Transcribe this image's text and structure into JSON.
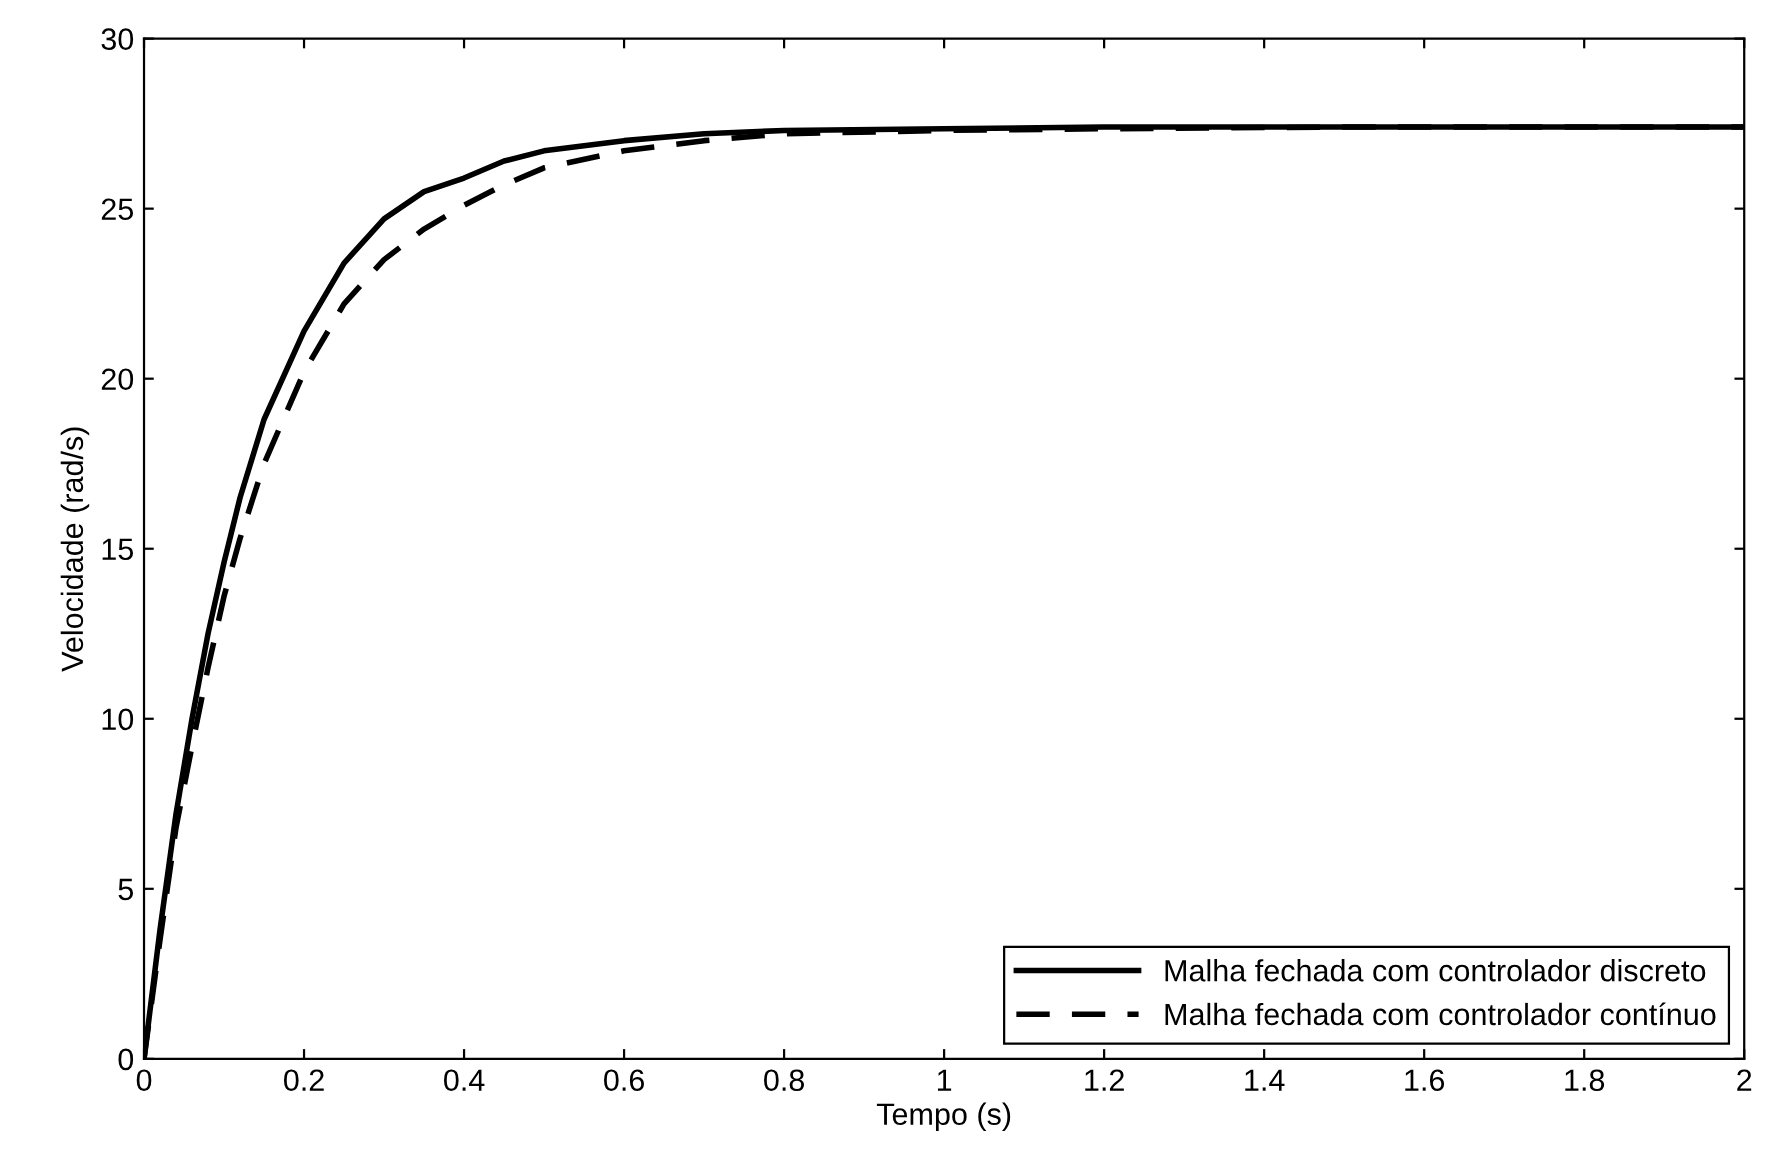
{
  "chart_data": {
    "type": "line",
    "xlabel": "Tempo (s)",
    "ylabel": "Velocidade (rad/s)",
    "xlim": [
      0,
      2
    ],
    "ylim": [
      0,
      30
    ],
    "xticks": [
      0,
      0.2,
      0.4,
      0.6,
      0.8,
      1,
      1.2,
      1.4,
      1.6,
      1.8,
      2
    ],
    "yticks": [
      0,
      5,
      10,
      15,
      20,
      25,
      30
    ],
    "grid": false,
    "legend": "bottom right",
    "x": [
      0,
      0.02,
      0.04,
      0.06,
      0.08,
      0.1,
      0.12,
      0.15,
      0.2,
      0.25,
      0.3,
      0.35,
      0.4,
      0.45,
      0.5,
      0.6,
      0.7,
      0.8,
      1.0,
      1.2,
      1.5,
      2.0
    ],
    "series": [
      {
        "name": "Malha fechada com controlador discreto",
        "color": "#000000",
        "line_style": "solid",
        "values": [
          0,
          3.8,
          7.2,
          10.0,
          12.5,
          14.6,
          16.5,
          18.8,
          21.4,
          23.4,
          24.7,
          25.5,
          25.9,
          26.4,
          26.7,
          27.0,
          27.2,
          27.3,
          27.35,
          27.4,
          27.4,
          27.4
        ]
      },
      {
        "name": "Malha fechada com controlador contínuo",
        "color": "#000000",
        "line_style": "dashed",
        "values": [
          0,
          3.5,
          6.8,
          9.2,
          11.5,
          13.6,
          15.3,
          17.5,
          20.2,
          22.2,
          23.5,
          24.4,
          25.1,
          25.7,
          26.2,
          26.7,
          27.0,
          27.2,
          27.3,
          27.35,
          27.4,
          27.4
        ]
      }
    ]
  }
}
